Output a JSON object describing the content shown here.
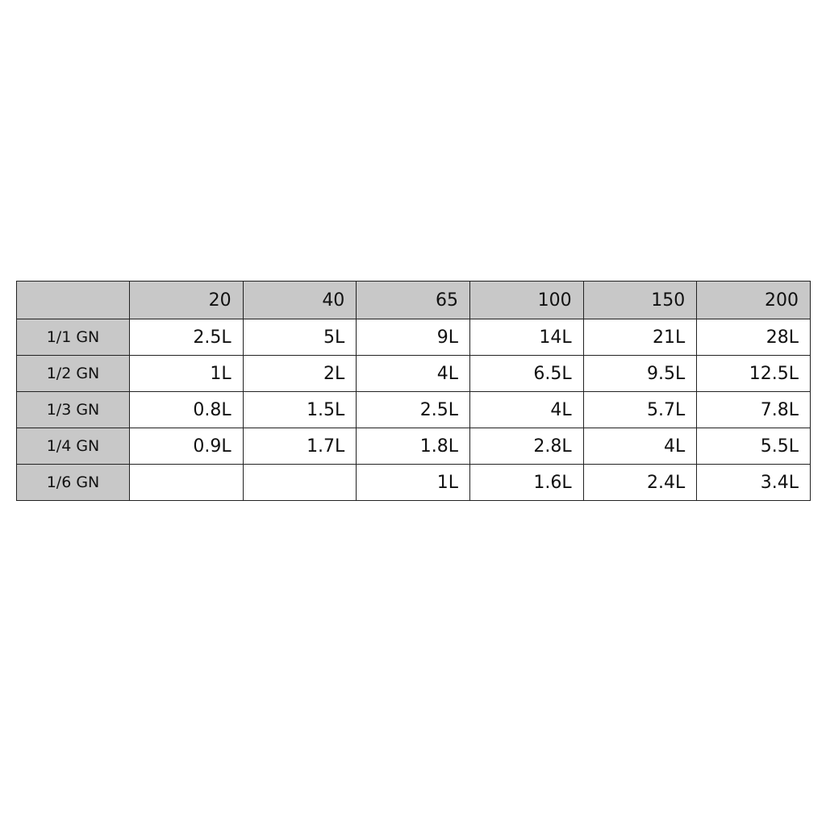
{
  "table": {
    "columns": [
      "20",
      "40",
      "65",
      "100",
      "150",
      "200"
    ],
    "rows": [
      {
        "label": "1/1 GN",
        "cells": [
          "2.5L",
          "5L",
          "9L",
          "14L",
          "21L",
          "28L"
        ]
      },
      {
        "label": "1/2 GN",
        "cells": [
          "1L",
          "2L",
          "4L",
          "6.5L",
          "9.5L",
          "12.5L"
        ]
      },
      {
        "label": "1/3 GN",
        "cells": [
          "0.8L",
          "1.5L",
          "2.5L",
          "4L",
          "5.7L",
          "7.8L"
        ]
      },
      {
        "label": "1/4 GN",
        "cells": [
          "0.9L",
          "1.7L",
          "1.8L",
          "2.8L",
          "4L",
          "5.5L"
        ]
      },
      {
        "label": "1/6 GN",
        "cells": [
          null,
          null,
          "1L",
          "1.6L",
          "2.4L",
          "3.4L"
        ]
      }
    ]
  }
}
